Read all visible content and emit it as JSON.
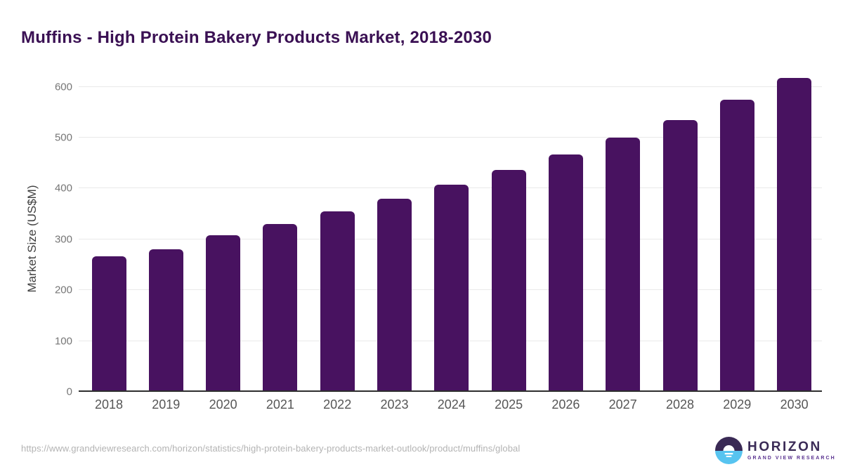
{
  "title": "Muffins - High Protein Bakery Products Market, 2018-2030",
  "chart_data": {
    "type": "bar",
    "title": "Muffins - High Protein Bakery Products Market, 2018-2030",
    "categories": [
      "2018",
      "2019",
      "2020",
      "2021",
      "2022",
      "2023",
      "2024",
      "2025",
      "2026",
      "2027",
      "2028",
      "2029",
      "2030"
    ],
    "values": [
      267,
      280,
      308,
      330,
      355,
      380,
      407,
      436,
      467,
      500,
      535,
      574,
      617
    ],
    "xlabel": "",
    "ylabel": "Market Size (US$M)",
    "ylim": [
      0,
      600
    ],
    "yticks": [
      0,
      100,
      200,
      300,
      400,
      500,
      600
    ],
    "grid": true,
    "legend": "none",
    "bar_color": "#481260"
  },
  "colors": {
    "title_text": "#3a1053",
    "bar": "#481260",
    "gridline": "#e9e9e9",
    "axis_line": "#2e2e2e",
    "tick_text": "#767676",
    "year_text": "#565656",
    "url_text": "#b3b3b3",
    "logo_dark": "#3a2a55",
    "logo_blue": "#57c4f0"
  },
  "footer": {
    "source_url": "https://www.grandviewresearch.com/horizon/statistics/high-protein-bakery-products-market-outlook/product/muffins/global",
    "logo_name": "HORIZON",
    "logo_subtitle": "GRAND VIEW RESEARCH"
  }
}
